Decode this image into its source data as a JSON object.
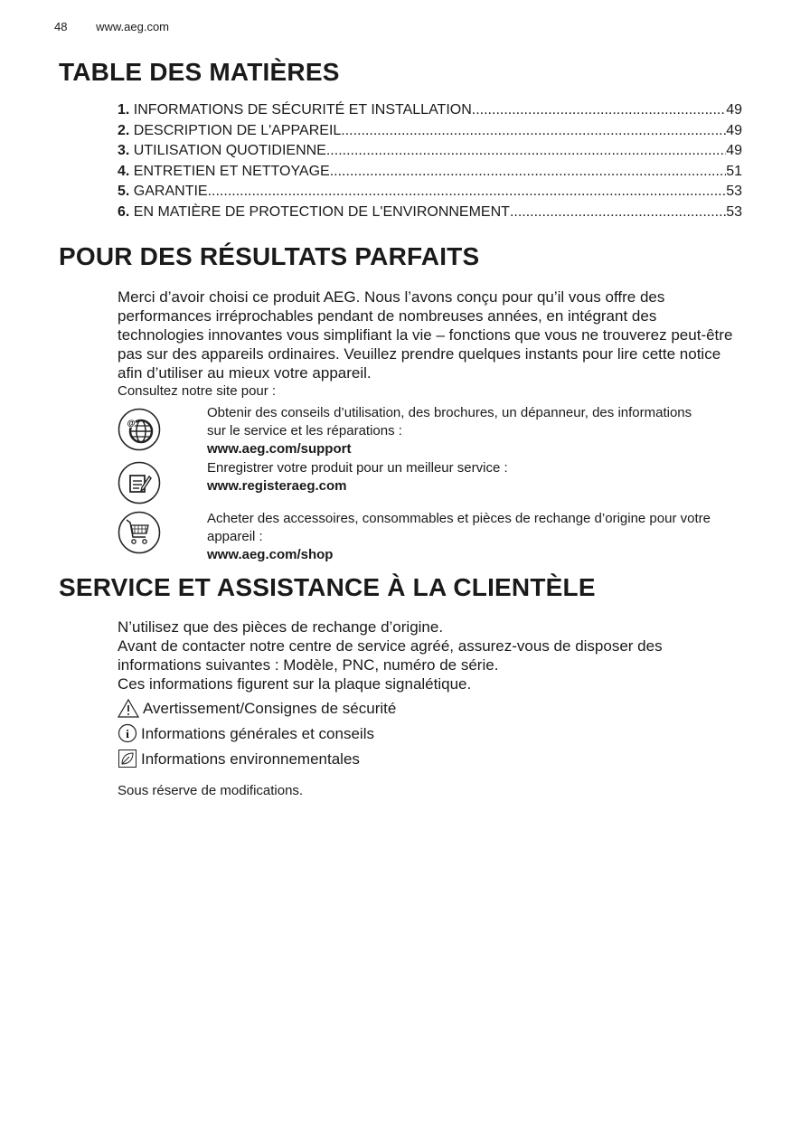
{
  "header": {
    "page_number": "48",
    "website": "www.aeg.com"
  },
  "toc": {
    "title": "TABLE DES MATIÈRES",
    "items": [
      {
        "num": "1.",
        "label": "INFORMATIONS DE SÉCURITÉ ET INSTALLATION",
        "page": "49"
      },
      {
        "num": "2.",
        "label": "DESCRIPTION DE L'APPAREIL",
        "page": "49"
      },
      {
        "num": "3.",
        "label": "UTILISATION QUOTIDIENNE",
        "page": "49"
      },
      {
        "num": "4.",
        "label": "ENTRETIEN ET NETTOYAGE",
        "page": "51"
      },
      {
        "num": "5.",
        "label": "GARANTIE",
        "page": "53"
      },
      {
        "num": "6.",
        "label": "EN MATIÈRE DE PROTECTION DE L'ENVIRONNEMENT",
        "page": "53"
      }
    ]
  },
  "results": {
    "title": "POUR DES RÉSULTATS PARFAITS",
    "intro": "Merci d’avoir choisi ce produit AEG. Nous l’avons conçu pour qu’il vous offre des performances irréprochables pendant de nombreuses années, en intégrant des technologies innovantes vous simplifiant la vie – fonctions que vous ne trouverez peut-être pas sur des appareils ordinaires. Veuillez prendre quelques instants pour lire cette notice afin d’utiliser au mieux votre appareil.",
    "consult": "Consultez notre site pour :",
    "items": [
      {
        "icon": "globe-at-icon",
        "text": "Obtenir des conseils d’utilisation, des brochures, un dépanneur, des informations sur le service et les réparations :",
        "link": "www.aeg.com/support"
      },
      {
        "icon": "register-note-icon",
        "text": "Enregistrer votre produit pour un meilleur service :",
        "link": "www.registeraeg.com"
      },
      {
        "icon": "shopping-cart-icon",
        "text": "Acheter des accessoires, consommables et pièces de rechange d’origine pour votre appareil :",
        "link": "www.aeg.com/shop"
      }
    ]
  },
  "service": {
    "title": "SERVICE ET ASSISTANCE À LA CLIENTÈLE",
    "lines": [
      "N’utilisez que des pièces de rechange d’origine.",
      "Avant de contacter notre centre de service agréé, assurez-vous de disposer des informations suivantes : Modèle, PNC, numéro de série.",
      "Ces informations figurent sur la plaque signalétique."
    ],
    "legend": [
      {
        "icon": "warning-icon",
        "label": "Avertissement/Consignes de sécurité"
      },
      {
        "icon": "info-icon",
        "label": "Informations générales et conseils"
      },
      {
        "icon": "leaf-icon",
        "label": "Informations environnementales"
      }
    ],
    "note": "Sous réserve de modifications."
  }
}
